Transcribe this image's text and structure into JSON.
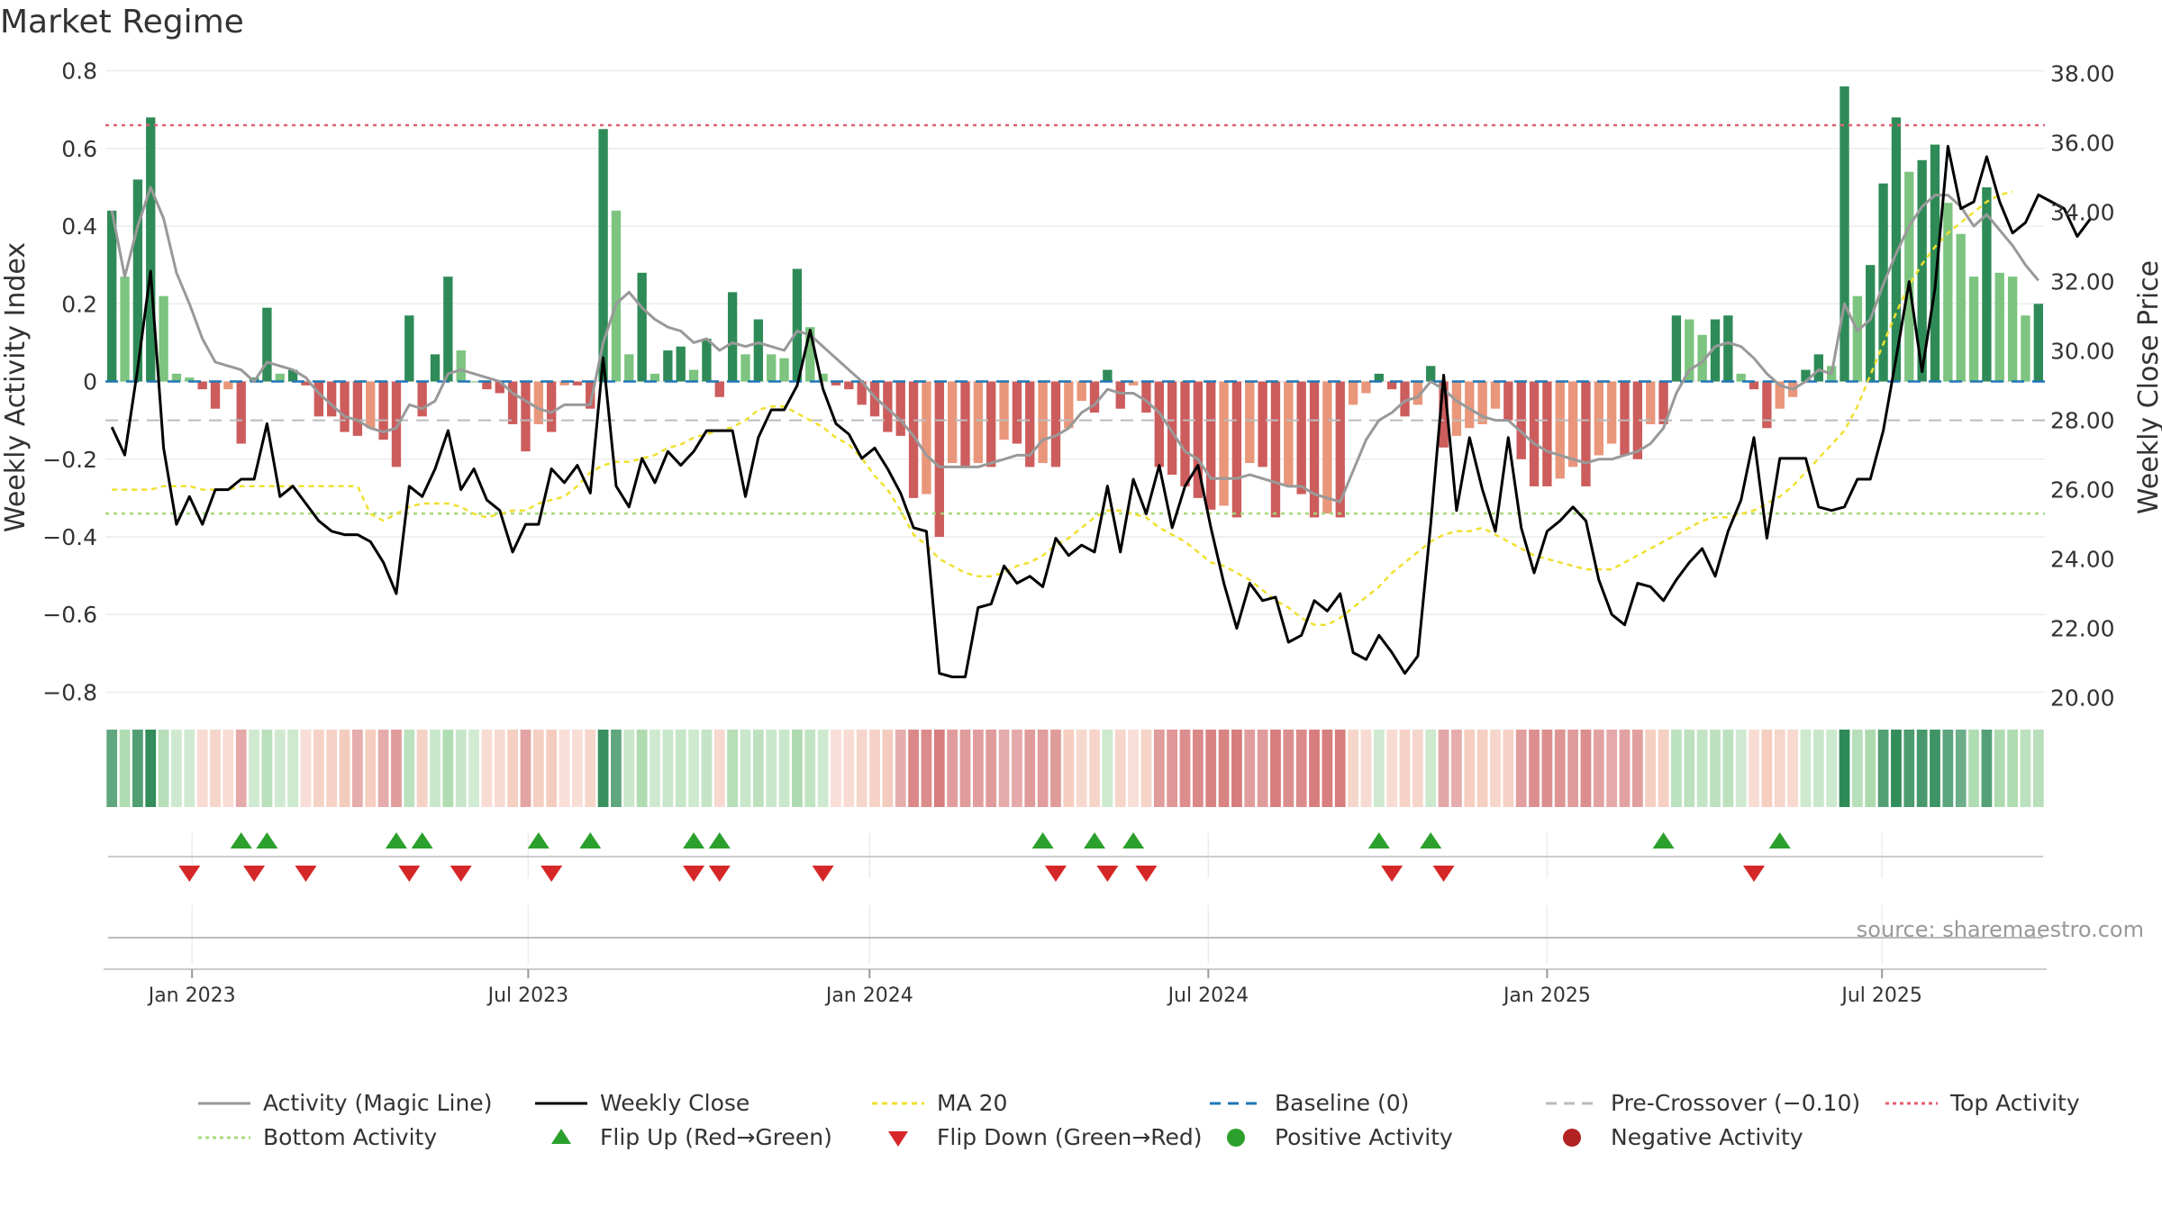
{
  "title": "Market Regime",
  "source": "source: sharemaestro.com",
  "colors": {
    "strong_green": "#2e8b57",
    "light_green": "#7cc47f",
    "strong_red": "#cd5c5c",
    "light_red": "#e9967a",
    "close": "#000000",
    "magic": "#999999",
    "ma20": "#f0e030",
    "baseline": "#1f77b4",
    "pre_cross": "#bbbbbb",
    "top": "#e06070",
    "bottom": "#a8d878",
    "flip_up": "#2ca02c",
    "flip_down": "#d62728"
  },
  "chart_data": {
    "type": "combo-bar-line",
    "title": "Market Regime",
    "ylabel_left": "Weekly Activity Index",
    "ylabel_right": "Weekly Close Price",
    "ylim_left": [
      -0.85,
      0.82
    ],
    "ylim_right": [
      19.6,
      38.3
    ],
    "yticks_left": [
      {
        "v": 0.8,
        "label": "0.8"
      },
      {
        "v": 0.6,
        "label": "0.6"
      },
      {
        "v": 0.4,
        "label": "0.4"
      },
      {
        "v": 0.2,
        "label": "0.2"
      },
      {
        "v": 0,
        "label": "0"
      },
      {
        "v": -0.2,
        "label": "−0.2"
      },
      {
        "v": -0.4,
        "label": "−0.4"
      },
      {
        "v": -0.6,
        "label": "−0.6"
      },
      {
        "v": -0.8,
        "label": "−0.8"
      }
    ],
    "yticks_right": [
      {
        "v": 38,
        "label": "38.00"
      },
      {
        "v": 36,
        "label": "36.00"
      },
      {
        "v": 34,
        "label": "34.00"
      },
      {
        "v": 32,
        "label": "32.00"
      },
      {
        "v": 30,
        "label": "30.00"
      },
      {
        "v": 28,
        "label": "28.00"
      },
      {
        "v": 26,
        "label": "26.00"
      },
      {
        "v": 24,
        "label": "24.00"
      },
      {
        "v": 22,
        "label": "22.00"
      },
      {
        "v": 20,
        "label": "20.00"
      }
    ],
    "xticks": [
      {
        "week": 6.2,
        "label": "Jan 2023"
      },
      {
        "week": 32.2,
        "label": "Jul 2023"
      },
      {
        "week": 58.6,
        "label": "Jan 2024"
      },
      {
        "week": 84.8,
        "label": "Jul 2024"
      },
      {
        "week": 111,
        "label": "Jan 2025"
      },
      {
        "week": 136.9,
        "label": "Jul 2025"
      }
    ],
    "top_activity": 0.66,
    "bottom_activity": -0.34,
    "pre_crossover": -0.1,
    "baseline": 0,
    "activity": [
      0.44,
      0.27,
      0.52,
      0.68,
      0.22,
      0.02,
      0.01,
      -0.02,
      -0.07,
      -0.02,
      -0.16,
      0.01,
      0.19,
      0.02,
      0.03,
      -0.01,
      -0.09,
      -0.09,
      -0.13,
      -0.14,
      -0.12,
      -0.15,
      -0.22,
      0.17,
      -0.09,
      0.07,
      0.27,
      0.08,
      0,
      -0.02,
      -0.03,
      -0.11,
      -0.18,
      -0.11,
      -0.13,
      -0.01,
      -0.01,
      -0.07,
      0.65,
      0.44,
      0.07,
      0.28,
      0.02,
      0.08,
      0.09,
      0.03,
      0.11,
      -0.04,
      0.23,
      0.07,
      0.16,
      0.07,
      0.06,
      0.29,
      0.14,
      0.02,
      -0.01,
      -0.02,
      -0.06,
      -0.09,
      -0.13,
      -0.14,
      -0.3,
      -0.29,
      -0.4,
      -0.21,
      -0.22,
      -0.21,
      -0.22,
      -0.15,
      -0.16,
      -0.22,
      -0.21,
      -0.22,
      -0.12,
      -0.05,
      -0.08,
      0.03,
      -0.07,
      -0.01,
      -0.08,
      -0.22,
      -0.24,
      -0.27,
      -0.3,
      -0.33,
      -0.32,
      -0.35,
      -0.21,
      -0.22,
      -0.35,
      -0.27,
      -0.29,
      -0.35,
      -0.34,
      -0.35,
      -0.06,
      -0.03,
      0.02,
      -0.02,
      -0.09,
      -0.06,
      0.04,
      -0.17,
      -0.14,
      -0.12,
      -0.11,
      -0.07,
      -0.1,
      -0.2,
      -0.27,
      -0.27,
      -0.25,
      -0.22,
      -0.27,
      -0.19,
      -0.16,
      -0.19,
      -0.2,
      -0.11,
      -0.11,
      0.17,
      0.16,
      0.12,
      0.16,
      0.17,
      0.02,
      -0.02,
      -0.12,
      -0.07,
      -0.04,
      0.03,
      0.07,
      0.04,
      0.76,
      0.22,
      0.3,
      0.51,
      0.68,
      0.54,
      0.57,
      0.61,
      0.46,
      0.38,
      0.27,
      0.5,
      0.28,
      0.27,
      0.17,
      0.2
    ],
    "magic_line": [
      0.44,
      0.27,
      0.4,
      0.5,
      0.42,
      0.28,
      0.2,
      0.11,
      0.05,
      0.04,
      0.03,
      0,
      0.05,
      0.04,
      0.03,
      0.01,
      -0.03,
      -0.06,
      -0.09,
      -0.1,
      -0.12,
      -0.13,
      -0.12,
      -0.06,
      -0.07,
      -0.05,
      0.02,
      0.03,
      0.02,
      0.01,
      0,
      -0.03,
      -0.05,
      -0.07,
      -0.08,
      -0.06,
      -0.06,
      -0.06,
      0.1,
      0.2,
      0.23,
      0.19,
      0.16,
      0.14,
      0.13,
      0.1,
      0.11,
      0.08,
      0.1,
      0.09,
      0.1,
      0.09,
      0.08,
      0.13,
      0.12,
      0.09,
      0.06,
      0.03,
      0,
      -0.04,
      -0.07,
      -0.1,
      -0.14,
      -0.19,
      -0.22,
      -0.22,
      -0.22,
      -0.22,
      -0.21,
      -0.2,
      -0.19,
      -0.19,
      -0.15,
      -0.14,
      -0.12,
      -0.08,
      -0.06,
      -0.02,
      -0.03,
      -0.03,
      -0.05,
      -0.08,
      -0.13,
      -0.18,
      -0.2,
      -0.25,
      -0.25,
      -0.25,
      -0.24,
      -0.25,
      -0.26,
      -0.27,
      -0.27,
      -0.29,
      -0.3,
      -0.31,
      -0.23,
      -0.15,
      -0.1,
      -0.08,
      -0.05,
      -0.04,
      0,
      -0.02,
      -0.05,
      -0.07,
      -0.09,
      -0.1,
      -0.1,
      -0.13,
      -0.16,
      -0.18,
      -0.19,
      -0.2,
      -0.21,
      -0.2,
      -0.2,
      -0.19,
      -0.18,
      -0.16,
      -0.12,
      -0.03,
      0.03,
      0.05,
      0.09,
      0.1,
      0.09,
      0.06,
      0.02,
      -0.01,
      -0.02,
      0,
      0.03,
      0.02,
      0.2,
      0.13,
      0.16,
      0.25,
      0.33,
      0.4,
      0.45,
      0.48,
      0.48,
      0.45,
      0.4,
      0.43,
      0.39,
      0.35,
      0.3,
      0.26
    ],
    "weekly_close": [
      27.8,
      27,
      29.5,
      32.3,
      27.2,
      25,
      25.8,
      25,
      26,
      26,
      26.3,
      26.3,
      27.9,
      25.8,
      26.1,
      25.6,
      25.1,
      24.8,
      24.7,
      24.7,
      24.5,
      23.9,
      23,
      26.1,
      25.8,
      26.6,
      27.7,
      26,
      26.6,
      25.7,
      25.4,
      24.2,
      25,
      25,
      26.6,
      26.2,
      26.7,
      25.9,
      29.8,
      26.1,
      25.5,
      26.9,
      26.2,
      27.1,
      26.7,
      27.1,
      27.7,
      27.7,
      27.7,
      25.8,
      27.5,
      28.3,
      28.3,
      29,
      30.6,
      28.9,
      27.9,
      27.6,
      26.9,
      27.2,
      26.6,
      25.9,
      24.9,
      24.8,
      20.7,
      20.6,
      20.6,
      22.6,
      22.7,
      23.8,
      23.3,
      23.5,
      23.2,
      24.6,
      24.1,
      24.4,
      24.2,
      26.1,
      24.2,
      26.3,
      25.3,
      26.7,
      24.9,
      26.1,
      26.7,
      24.9,
      23.3,
      22,
      23.3,
      22.8,
      22.9,
      21.6,
      21.8,
      22.8,
      22.5,
      23,
      21.3,
      21.1,
      21.8,
      21.3,
      20.7,
      21.2,
      25,
      29.3,
      25.4,
      27.5,
      26,
      24.8,
      27.5,
      24.9,
      23.6,
      24.8,
      25.1,
      25.5,
      25.1,
      23.4,
      22.4,
      22.1,
      23.3,
      23.2,
      22.8,
      23.4,
      23.9,
      24.3,
      23.5,
      24.8,
      25.7,
      27.5,
      24.6,
      26.9,
      26.9,
      26.9,
      25.5,
      25.4,
      25.5,
      26.3,
      26.3,
      27.7,
      29.8,
      32,
      29.4,
      31.8,
      35.9,
      34.1,
      34.3,
      35.6,
      34.3,
      33.4,
      33.7,
      34.5,
      34.3,
      34.1,
      33.3,
      33.8
    ],
    "ma20": [
      26,
      26,
      26,
      26,
      26.1,
      26.1,
      26.1,
      26,
      26,
      26,
      26.1,
      26.1,
      26.1,
      26.1,
      26.1,
      26.1,
      26.1,
      26.1,
      26.1,
      26.1,
      25.3,
      25.1,
      25.3,
      25.5,
      25.6,
      25.6,
      25.6,
      25.5,
      25.3,
      25.2,
      25.3,
      25.4,
      25.4,
      25.6,
      25.7,
      25.8,
      26.1,
      26.5,
      26.7,
      26.8,
      26.8,
      26.9,
      27,
      27.2,
      27.3,
      27.5,
      27.6,
      27.7,
      27.8,
      28,
      28.3,
      28.4,
      28.4,
      28.2,
      28,
      27.8,
      27.5,
      27.3,
      26.9,
      26.4,
      26,
      25.4,
      24.7,
      24.4,
      24,
      23.8,
      23.6,
      23.5,
      23.5,
      23.6,
      23.8,
      23.9,
      24.1,
      24.4,
      24.6,
      24.9,
      25.2,
      25.4,
      25.4,
      25.3,
      25.2,
      24.9,
      24.7,
      24.5,
      24.2,
      23.9,
      23.8,
      23.6,
      23.4,
      23.1,
      22.8,
      22.6,
      22.3,
      22.1,
      22.1,
      22.3,
      22.6,
      22.9,
      23.2,
      23.6,
      23.9,
      24.2,
      24.5,
      24.7,
      24.8,
      24.8,
      24.9,
      24.7,
      24.5,
      24.3,
      24.1,
      24,
      23.9,
      23.8,
      23.7,
      23.7,
      23.7,
      23.9,
      24.1,
      24.3,
      24.5,
      24.7,
      24.9,
      25.1,
      25.2,
      25.2,
      25.3,
      25.4,
      25.6,
      25.8,
      26.1,
      26.5,
      26.9,
      27.3,
      27.7,
      28.4,
      29.3,
      30.2,
      31.1,
      31.9,
      32.5,
      33,
      33.4,
      33.7,
      34,
      34.3,
      34.5,
      34.6
    ],
    "flip_up_weeks": [
      10,
      12,
      22,
      24,
      33,
      37,
      45,
      47,
      72,
      76,
      79,
      98,
      102,
      120,
      129
    ],
    "flip_down_weeks": [
      6,
      11,
      15,
      23,
      27,
      34,
      45,
      47,
      55,
      73,
      77,
      80,
      99,
      103,
      127
    ]
  },
  "legend": [
    {
      "label": "Activity (Magic Line)",
      "kind": "line",
      "color": "#999999",
      "dash": ""
    },
    {
      "label": "Weekly Close",
      "kind": "line",
      "color": "#000000",
      "dash": ""
    },
    {
      "label": "MA 20",
      "kind": "line",
      "color": "#f0e030",
      "dash": "6,5"
    },
    {
      "label": "Baseline (0)",
      "kind": "line",
      "color": "#1f77b4",
      "dash": "12,8"
    },
    {
      "label": "Pre-Crossover (−0.10)",
      "kind": "line",
      "color": "#bbbbbb",
      "dash": "12,8"
    },
    {
      "label": "Top Activity",
      "kind": "line",
      "color": "#e06070",
      "dash": "4,4"
    },
    {
      "label": "Bottom Activity",
      "kind": "line",
      "color": "#a8d878",
      "dash": "4,4"
    },
    {
      "label": "Flip Up (Red→Green)",
      "kind": "tri-up",
      "color": "#2ca02c",
      "dash": ""
    },
    {
      "label": "Flip Down (Green→Red)",
      "kind": "tri-down",
      "color": "#d62728",
      "dash": ""
    },
    {
      "label": "Positive Activity",
      "kind": "dot",
      "color": "#2ca02c",
      "dash": ""
    },
    {
      "label": "Negative Activity",
      "kind": "dot",
      "color": "#b22222",
      "dash": ""
    }
  ]
}
